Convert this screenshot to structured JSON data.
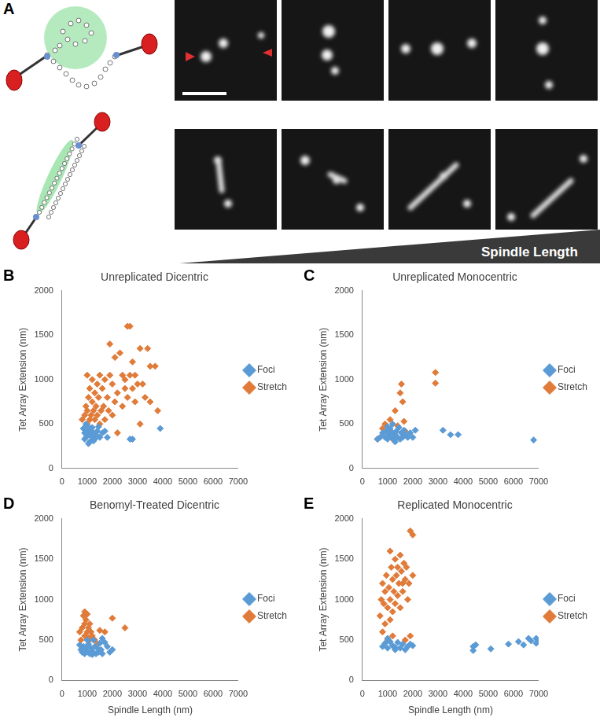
{
  "panel_a": {
    "label": "A",
    "arrow_text": "Spindle Length"
  },
  "chart_data": [
    {
      "panel": "B",
      "type": "scatter",
      "title": "Unreplicated Dicentric",
      "y_label": "Tet Array Extension (nm)",
      "xlim": [
        0,
        7000
      ],
      "xticks": [
        0,
        1000,
        2000,
        3000,
        4000,
        5000,
        6000,
        7000
      ],
      "ylim": [
        0,
        2000
      ],
      "yticks": [
        0,
        500,
        1000,
        1500,
        2000
      ],
      "grid": false,
      "legend": "right",
      "series": [
        {
          "name": "Foci",
          "color": "#5b9bd5",
          "marker": "diamond",
          "x": [
            900,
            950,
            1000,
            1050,
            1100,
            1150,
            1200,
            1250,
            1300,
            1000,
            1100,
            1200,
            1350,
            1400,
            1500,
            1600,
            850,
            900,
            1050,
            1150,
            1250,
            1700,
            1800,
            2700,
            2800,
            3900,
            1450,
            950
          ],
          "values": [
            400,
            350,
            420,
            380,
            300,
            450,
            350,
            400,
            330,
            480,
            420,
            460,
            380,
            420,
            350,
            400,
            450,
            330,
            280,
            370,
            310,
            420,
            350,
            330,
            330,
            450,
            470,
            500
          ]
        },
        {
          "name": "Stretch",
          "color": "#e07b39",
          "marker": "diamond",
          "x": [
            800,
            900,
            950,
            1000,
            1000,
            1050,
            1100,
            1100,
            1150,
            1200,
            1200,
            1250,
            1300,
            1300,
            1350,
            1400,
            1400,
            1450,
            1500,
            1500,
            1550,
            1600,
            1650,
            1700,
            1700,
            1800,
            1850,
            1900,
            2000,
            2000,
            2100,
            2100,
            2200,
            2200,
            2300,
            2400,
            2400,
            2500,
            2500,
            2600,
            2600,
            2700,
            2700,
            2800,
            2800,
            2900,
            3000,
            3100,
            3100,
            3200,
            3400,
            3500,
            3500,
            3700,
            3800,
            1000,
            1200,
            2900,
            3300,
            1900
          ],
          "values": [
            550,
            600,
            700,
            500,
            650,
            800,
            550,
            900,
            600,
            750,
            1000,
            650,
            550,
            850,
            700,
            600,
            950,
            800,
            500,
            1050,
            650,
            900,
            700,
            550,
            1000,
            800,
            650,
            1050,
            600,
            950,
            1250,
            750,
            850,
            400,
            1300,
            700,
            1050,
            1000,
            900,
            800,
            1600,
            1600,
            1050,
            1200,
            900,
            750,
            950,
            1350,
            500,
            950,
            1350,
            1150,
            750,
            1150,
            650,
            1050,
            400,
            1050,
            800,
            1400
          ]
        }
      ]
    },
    {
      "panel": "C",
      "type": "scatter",
      "title": "Unreplicated Monocentric",
      "y_label": "Tet Array Extension (nm)",
      "xlim": [
        0,
        7000
      ],
      "xticks": [
        0,
        1000,
        2000,
        3000,
        4000,
        5000,
        6000,
        7000
      ],
      "ylim": [
        0,
        2000
      ],
      "yticks": [
        0,
        500,
        1000,
        1500,
        2000
      ],
      "grid": false,
      "legend": "right",
      "series": [
        {
          "name": "Foci",
          "color": "#5b9bd5",
          "marker": "diamond",
          "x": [
            600,
            700,
            800,
            900,
            950,
            1000,
            1050,
            1100,
            1150,
            1200,
            1250,
            1300,
            1350,
            1400,
            1450,
            1500,
            1550,
            1600,
            1650,
            1700,
            1800,
            1900,
            2000,
            2100,
            1200,
            3200,
            3500,
            3800,
            6800,
            1000,
            1300
          ],
          "values": [
            330,
            350,
            400,
            350,
            420,
            330,
            380,
            450,
            350,
            400,
            330,
            380,
            420,
            350,
            460,
            330,
            400,
            350,
            430,
            380,
            350,
            400,
            350,
            430,
            500,
            430,
            380,
            380,
            320,
            470,
            300
          ]
        },
        {
          "name": "Stretch",
          "color": "#e07b39",
          "marker": "diamond",
          "x": [
            600,
            800,
            900,
            1000,
            1100,
            1200,
            1300,
            1400,
            1500,
            1550,
            1600,
            1650,
            2900,
            2900,
            1700
          ],
          "values": [
            330,
            450,
            500,
            420,
            550,
            330,
            650,
            480,
            850,
            950,
            750,
            530,
            1080,
            960,
            420
          ]
        }
      ]
    },
    {
      "panel": "D",
      "type": "scatter",
      "title": "Benomyl-Treated Dicentric",
      "x_label": "Spindle Length (nm)",
      "y_label": "Tet Array Extension (nm)",
      "xlim": [
        0,
        7000
      ],
      "xticks": [
        0,
        1000,
        2000,
        3000,
        4000,
        5000,
        6000,
        7000
      ],
      "ylim": [
        0,
        2000
      ],
      "yticks": [
        0,
        500,
        1000,
        1500,
        2000
      ],
      "grid": false,
      "legend": "right",
      "series": [
        {
          "name": "Foci",
          "color": "#5b9bd5",
          "marker": "diamond",
          "x": [
            700,
            750,
            800,
            850,
            900,
            950,
            1000,
            1050,
            1100,
            1150,
            1200,
            1250,
            1300,
            1350,
            1400,
            1450,
            1500,
            1550,
            1600,
            1700,
            1800,
            1900,
            2000,
            1000,
            1200,
            1600
          ],
          "values": [
            440,
            380,
            350,
            420,
            330,
            400,
            360,
            450,
            330,
            400,
            360,
            500,
            420,
            330,
            400,
            350,
            460,
            380,
            330,
            470,
            420,
            350,
            380,
            500,
            320,
            520
          ]
        },
        {
          "name": "Stretch",
          "color": "#e07b39",
          "marker": "diamond",
          "x": [
            700,
            750,
            800,
            850,
            900,
            900,
            950,
            1000,
            1000,
            1050,
            1100,
            1100,
            1150,
            1200,
            1300,
            1400,
            1500,
            1700,
            2000,
            2500,
            900,
            1050
          ],
          "values": [
            600,
            500,
            650,
            800,
            700,
            550,
            750,
            820,
            600,
            650,
            500,
            700,
            600,
            550,
            500,
            450,
            620,
            600,
            770,
            650,
            850,
            530
          ]
        }
      ]
    },
    {
      "panel": "E",
      "type": "scatter",
      "title": "Replicated Monocentric",
      "x_label": "Spindle Length (nm)",
      "y_label": "Tet Array Extension (nm)",
      "xlim": [
        0,
        7000
      ],
      "xticks": [
        0,
        1000,
        2000,
        3000,
        4000,
        5000,
        6000,
        7000
      ],
      "ylim": [
        0,
        2000
      ],
      "yticks": [
        0,
        500,
        1000,
        1500,
        2000
      ],
      "grid": false,
      "legend": "right",
      "series": [
        {
          "name": "Foci",
          "color": "#5b9bd5",
          "marker": "diamond",
          "x": [
            800,
            900,
            1000,
            1100,
            1200,
            1300,
            1400,
            1500,
            1600,
            1700,
            1800,
            1900,
            2000,
            4400,
            4400,
            4500,
            5100,
            5800,
            6200,
            6400,
            6600,
            6700,
            6900,
            6900,
            7000,
            1000,
            1300
          ],
          "values": [
            420,
            460,
            400,
            480,
            430,
            410,
            470,
            400,
            450,
            380,
            420,
            450,
            430,
            420,
            370,
            440,
            390,
            450,
            480,
            440,
            520,
            490,
            520,
            460,
            480,
            520,
            380
          ]
        },
        {
          "name": "Stretch",
          "color": "#e07b39",
          "marker": "diamond",
          "x": [
            700,
            750,
            800,
            800,
            850,
            900,
            900,
            950,
            1000,
            1000,
            1050,
            1100,
            1100,
            1150,
            1200,
            1200,
            1250,
            1300,
            1300,
            1350,
            1400,
            1400,
            1450,
            1500,
            1500,
            1550,
            1600,
            1650,
            1700,
            1750,
            1800,
            1850,
            1900,
            2000,
            2000,
            1100,
            1900,
            1700,
            1200,
            1600
          ],
          "values": [
            800,
            1000,
            600,
            1200,
            950,
            1100,
            700,
            1300,
            900,
            500,
            1150,
            1000,
            750,
            1400,
            850,
            1250,
            1100,
            950,
            1500,
            1300,
            1050,
            1400,
            1200,
            900,
            1550,
            1350,
            1100,
            1450,
            1250,
            1400,
            1000,
            1200,
            1850,
            1800,
            1300,
            1600,
            550,
            500,
            550,
            1200
          ]
        }
      ]
    }
  ]
}
